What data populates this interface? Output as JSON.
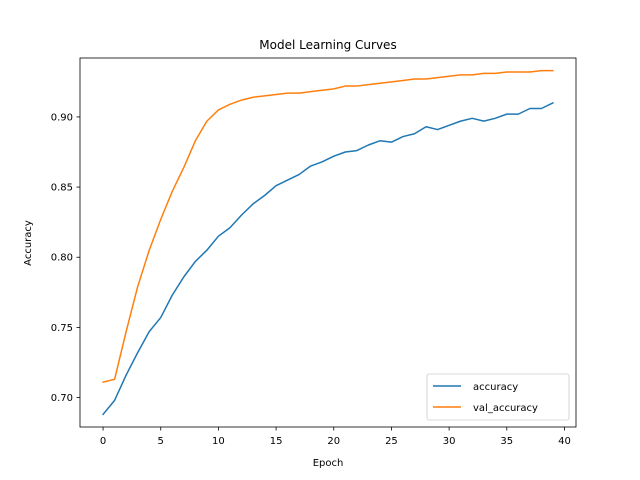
{
  "chart_data": {
    "type": "line",
    "title": "Model Learning Curves",
    "xlabel": "Epoch",
    "ylabel": "Accuracy",
    "xlim": [
      -2,
      41
    ],
    "ylim": [
      0.679,
      0.942
    ],
    "xticks": [
      0,
      5,
      10,
      15,
      20,
      25,
      30,
      35,
      40
    ],
    "yticks": [
      0.7,
      0.75,
      0.8,
      0.85,
      0.9
    ],
    "xtick_labels": [
      "0",
      "5",
      "10",
      "15",
      "20",
      "25",
      "30",
      "35",
      "40"
    ],
    "ytick_labels": [
      "0.70",
      "0.75",
      "0.80",
      "0.85",
      "0.90"
    ],
    "legend_position": "lower-right",
    "grid": false,
    "x": [
      0,
      1,
      2,
      3,
      4,
      5,
      6,
      7,
      8,
      9,
      10,
      11,
      12,
      13,
      14,
      15,
      16,
      17,
      18,
      19,
      20,
      21,
      22,
      23,
      24,
      25,
      26,
      27,
      28,
      29,
      30,
      31,
      32,
      33,
      34,
      35,
      36,
      37,
      38,
      39
    ],
    "series": [
      {
        "name": "accuracy",
        "color": "#1f77b4",
        "values": [
          0.688,
          0.698,
          0.716,
          0.732,
          0.747,
          0.757,
          0.773,
          0.786,
          0.797,
          0.805,
          0.815,
          0.821,
          0.83,
          0.838,
          0.844,
          0.851,
          0.855,
          0.859,
          0.865,
          0.868,
          0.872,
          0.875,
          0.876,
          0.88,
          0.883,
          0.882,
          0.886,
          0.888,
          0.893,
          0.891,
          0.894,
          0.897,
          0.899,
          0.897,
          0.899,
          0.902,
          0.902,
          0.906,
          0.906,
          0.91
        ]
      },
      {
        "name": "val_accuracy",
        "color": "#ff7f0e",
        "values": [
          0.711,
          0.713,
          0.747,
          0.779,
          0.805,
          0.827,
          0.847,
          0.864,
          0.883,
          0.897,
          0.905,
          0.909,
          0.912,
          0.914,
          0.915,
          0.916,
          0.917,
          0.917,
          0.918,
          0.919,
          0.92,
          0.922,
          0.922,
          0.923,
          0.924,
          0.925,
          0.926,
          0.927,
          0.927,
          0.928,
          0.929,
          0.93,
          0.93,
          0.931,
          0.931,
          0.932,
          0.932,
          0.932,
          0.933,
          0.933
        ]
      }
    ]
  }
}
